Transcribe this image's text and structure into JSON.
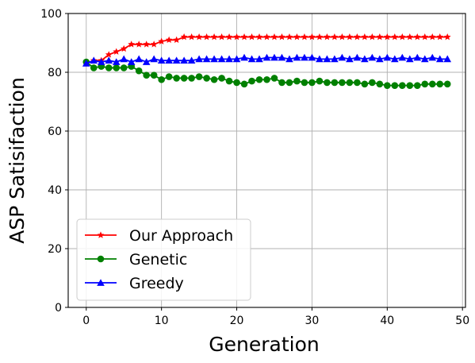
{
  "chart_data": {
    "type": "line",
    "xlabel": "Generation",
    "ylabel": "ASP Satisifaction",
    "xlim": [
      -2.4,
      50.4
    ],
    "ylim": [
      0,
      100
    ],
    "xticks": [
      0,
      10,
      20,
      30,
      40,
      50
    ],
    "yticks": [
      0,
      20,
      40,
      60,
      80,
      100
    ],
    "grid": true,
    "legend_position": "lower-left",
    "x": [
      0,
      1,
      2,
      3,
      4,
      5,
      6,
      7,
      8,
      9,
      10,
      11,
      12,
      13,
      14,
      15,
      16,
      17,
      18,
      19,
      20,
      21,
      22,
      23,
      24,
      25,
      26,
      27,
      28,
      29,
      30,
      31,
      32,
      33,
      34,
      35,
      36,
      37,
      38,
      39,
      40,
      41,
      42,
      43,
      44,
      45,
      46,
      47,
      48
    ],
    "series": [
      {
        "name": "Our Approach",
        "color": "#ff0000",
        "marker": "star",
        "values": [
          83,
          84,
          84,
          86,
          87,
          88,
          89.5,
          89.5,
          89.5,
          89.5,
          90.5,
          91,
          91,
          92,
          92,
          92,
          92,
          92,
          92,
          92,
          92,
          92,
          92,
          92,
          92,
          92,
          92,
          92,
          92,
          92,
          92,
          92,
          92,
          92,
          92,
          92,
          92,
          92,
          92,
          92,
          92,
          92,
          92,
          92,
          92,
          92,
          92,
          92,
          92
        ]
      },
      {
        "name": "Genetic",
        "color": "#008000",
        "marker": "circle",
        "values": [
          83.5,
          81.5,
          82,
          81.5,
          81.5,
          81.5,
          82,
          80.5,
          79,
          79,
          77.5,
          78.5,
          78,
          78,
          78,
          78.5,
          78,
          77.5,
          78,
          77,
          76.5,
          76,
          77,
          77.5,
          77.5,
          78,
          76.5,
          76.5,
          77,
          76.5,
          76.5,
          77,
          76.5,
          76.5,
          76.5,
          76.5,
          76.5,
          76,
          76.5,
          76,
          75.5,
          75.5,
          75.5,
          75.5,
          75.5,
          76,
          76,
          76,
          76
        ]
      },
      {
        "name": "Greedy",
        "color": "#0000ff",
        "marker": "triangle",
        "values": [
          83,
          84,
          83.5,
          84,
          83.5,
          84.5,
          83.5,
          84.5,
          83.5,
          84.5,
          84,
          84,
          84,
          84,
          84,
          84.5,
          84.5,
          84.5,
          84.5,
          84.5,
          84.5,
          85,
          84.5,
          84.5,
          85,
          85,
          85,
          84.5,
          85,
          85,
          85,
          84.5,
          84.5,
          84.5,
          85,
          84.5,
          85,
          84.5,
          85,
          84.5,
          85,
          84.5,
          85,
          84.5,
          85,
          84.5,
          85,
          84.5,
          84.5
        ]
      }
    ]
  }
}
